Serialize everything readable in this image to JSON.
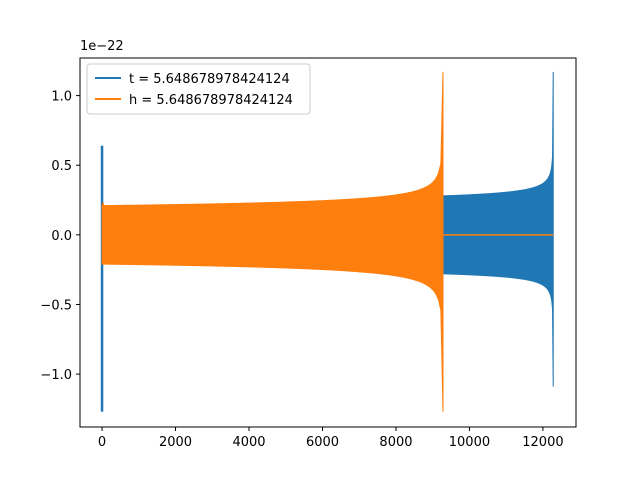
{
  "chart_data": {
    "type": "line",
    "title": "",
    "xlabel": "",
    "ylabel": "",
    "y_offset_label": "1e−22",
    "xlim": [
      -600,
      12900
    ],
    "ylim": [
      -1.38,
      1.27
    ],
    "x_ticks": [
      {
        "value": 0,
        "label": "0"
      },
      {
        "value": 2000,
        "label": "2000"
      },
      {
        "value": 4000,
        "label": "4000"
      },
      {
        "value": 6000,
        "label": "6000"
      },
      {
        "value": 8000,
        "label": "8000"
      },
      {
        "value": 10000,
        "label": "10000"
      },
      {
        "value": 12000,
        "label": "12000"
      }
    ],
    "y_ticks": [
      {
        "value": 1.0,
        "label": "1.0"
      },
      {
        "value": 0.5,
        "label": "0.5"
      },
      {
        "value": 0.0,
        "label": "0.0"
      },
      {
        "value": -0.5,
        "label": "−0.5"
      },
      {
        "value": -1.0,
        "label": "−1.0"
      }
    ],
    "grid": false,
    "legend_position": "top-left",
    "series": [
      {
        "name": "t = 5.648678978424124",
        "color": "#1f77b4",
        "shape": "chirp",
        "x_start": 0,
        "x_chirp_start": 9300,
        "x_end": 12280,
        "start_spike": {
          "max": 0.64,
          "min": -1.27
        },
        "envelope_start": 0.28,
        "peak_max": 1.17,
        "peak_min": -1.09
      },
      {
        "name": "h = 5.648678978424124",
        "color": "#ff7f0e",
        "shape": "chirp",
        "x_start": 0,
        "x_end": 9280,
        "x_flat_end": 12280,
        "start_spike": {
          "max": 0.23,
          "min": -0.2
        },
        "envelope_start": 0.21,
        "peak_max": 1.17,
        "peak_min": -1.27
      }
    ]
  }
}
